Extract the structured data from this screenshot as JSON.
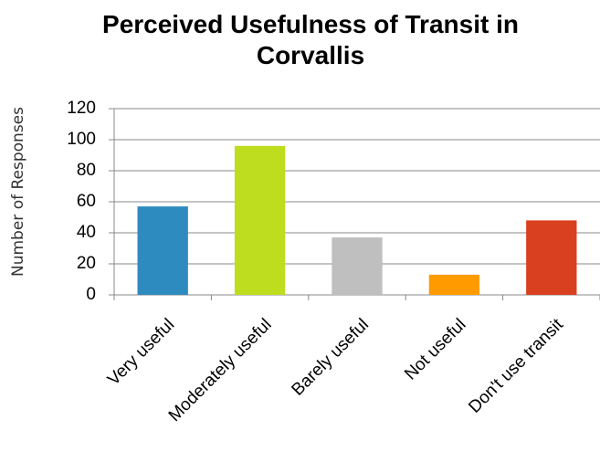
{
  "chart_data": {
    "type": "bar",
    "title": "Perceived Usefulness of Transit in Corvallis",
    "y_label": "Number of Responses",
    "categories": [
      "Very useful",
      "Moderately useful",
      "Barely useful",
      "Not useful",
      "Don't use transit"
    ],
    "values": [
      57,
      96,
      37,
      13,
      48
    ],
    "colors": [
      "#2e8bbf",
      "#bedd1f",
      "#bfbfbf",
      "#ff9b00",
      "#d9401f"
    ],
    "ylim": [
      0,
      120
    ],
    "yticks": [
      0,
      20,
      40,
      60,
      80,
      100,
      120
    ],
    "grid": true
  }
}
